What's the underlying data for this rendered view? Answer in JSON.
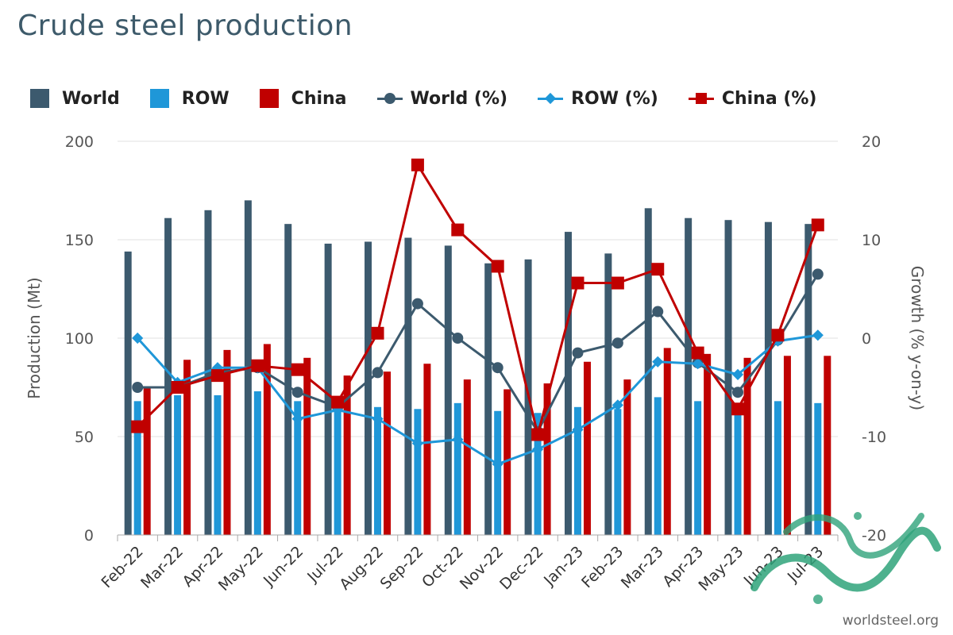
{
  "title": "Crude steel production",
  "watermark": "worldsteel.org",
  "legend": {
    "world": "World",
    "row": "ROW",
    "china": "China",
    "world_pct": "World (%)",
    "row_pct": "ROW (%)",
    "china_pct": "China (%)"
  },
  "colors": {
    "world": "#3c5a6e",
    "row": "#1f97d8",
    "china": "#c00000"
  },
  "chart_data": {
    "type": "bar",
    "categories": [
      "Feb-22",
      "Mar-22",
      "Apr-22",
      "May-22",
      "Jun-22",
      "Jul-22",
      "Aug-22",
      "Sep-22",
      "Oct-22",
      "Nov-22",
      "Dec-22",
      "Jan-23",
      "Feb-23",
      "Mar-23",
      "Apr-23",
      "May-23",
      "Jun-23",
      "Jul-23"
    ],
    "ylabel": "Production (Mt)",
    "ylabel_right": "Growth (% y-on-y)",
    "ylim": [
      0,
      200
    ],
    "yticks": [
      0,
      50,
      100,
      150,
      200
    ],
    "ylim_right": [
      -20,
      20
    ],
    "yticks_right": [
      -20,
      -10,
      0,
      10,
      20
    ],
    "grid": true,
    "legend_position": "top",
    "series": [
      {
        "name": "World",
        "kind": "bar",
        "values": [
          144,
          161,
          165,
          170,
          158,
          148,
          149,
          151,
          147,
          138,
          140,
          154,
          143,
          166,
          161,
          160,
          159,
          158
        ]
      },
      {
        "name": "ROW",
        "kind": "bar",
        "values": [
          68,
          71,
          71,
          73,
          68,
          64,
          65,
          64,
          67,
          63,
          62,
          65,
          64,
          70,
          68,
          63,
          68,
          67
        ]
      },
      {
        "name": "China",
        "kind": "bar",
        "values": [
          75,
          89,
          94,
          97,
          90,
          81,
          83,
          87,
          79,
          74,
          77,
          88,
          79,
          95,
          92,
          90,
          91,
          91
        ]
      },
      {
        "name": "World (%)",
        "kind": "line",
        "marker": "circle",
        "values": [
          -5,
          -5,
          -3.5,
          -3,
          -5.5,
          -7,
          -3.5,
          3.5,
          0,
          -3,
          -9.5,
          -1.5,
          -0.5,
          2.7,
          -2.5,
          -5.5,
          -0.2,
          6.5
        ]
      },
      {
        "name": "ROW (%)",
        "kind": "line",
        "marker": "diamond",
        "values": [
          0,
          -4.5,
          -3,
          -3,
          -8.2,
          -7.3,
          -8.2,
          -10.7,
          -10.3,
          -12.8,
          -11.3,
          -9.3,
          -6.8,
          -2.4,
          -2.6,
          -3.7,
          -0.3,
          0.3
        ]
      },
      {
        "name": "China (%)",
        "kind": "line",
        "marker": "square",
        "values": [
          -9,
          -5,
          -3.8,
          -2.8,
          -3.2,
          -6.5,
          0.5,
          17.6,
          11,
          7.3,
          -9.8,
          5.6,
          5.6,
          7,
          -1.5,
          -7.2,
          0.3,
          11.5
        ]
      }
    ]
  }
}
